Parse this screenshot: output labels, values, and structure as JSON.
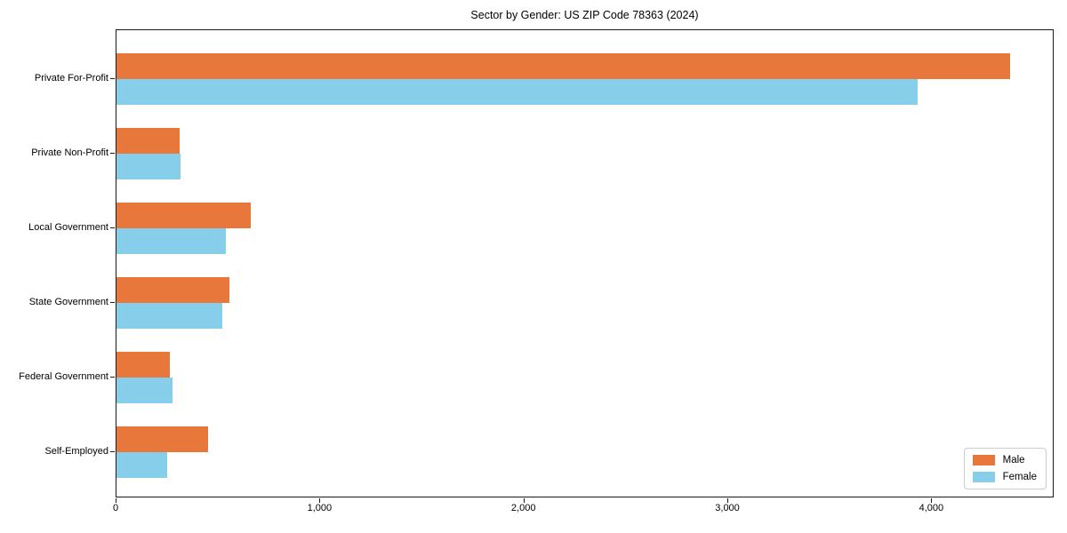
{
  "chart_data": {
    "type": "bar",
    "orientation": "horizontal",
    "title": "Sector by Gender: US ZIP Code 78363 (2024)",
    "categories": [
      "Private For-Profit",
      "Private Non-Profit",
      "Local Government",
      "State Government",
      "Federal Government",
      "Self-Employed"
    ],
    "series": [
      {
        "name": "Male",
        "color": "#e8773c",
        "values": [
          4384,
          310,
          660,
          555,
          260,
          450
        ]
      },
      {
        "name": "Female",
        "color": "#87ceeb",
        "values": [
          3930,
          315,
          535,
          520,
          275,
          250
        ]
      }
    ],
    "xlim": [
      0,
      4600
    ],
    "x_ticks": [
      0,
      1000,
      2000,
      3000,
      4000
    ],
    "x_tick_labels": [
      "0",
      "1,000",
      "2,000",
      "3,000",
      "4,000"
    ],
    "xlabel": "",
    "ylabel": "",
    "grid": false,
    "legend_position": "lower right",
    "spine_color": "#1a1a1a",
    "background_color": "#ffffff"
  }
}
